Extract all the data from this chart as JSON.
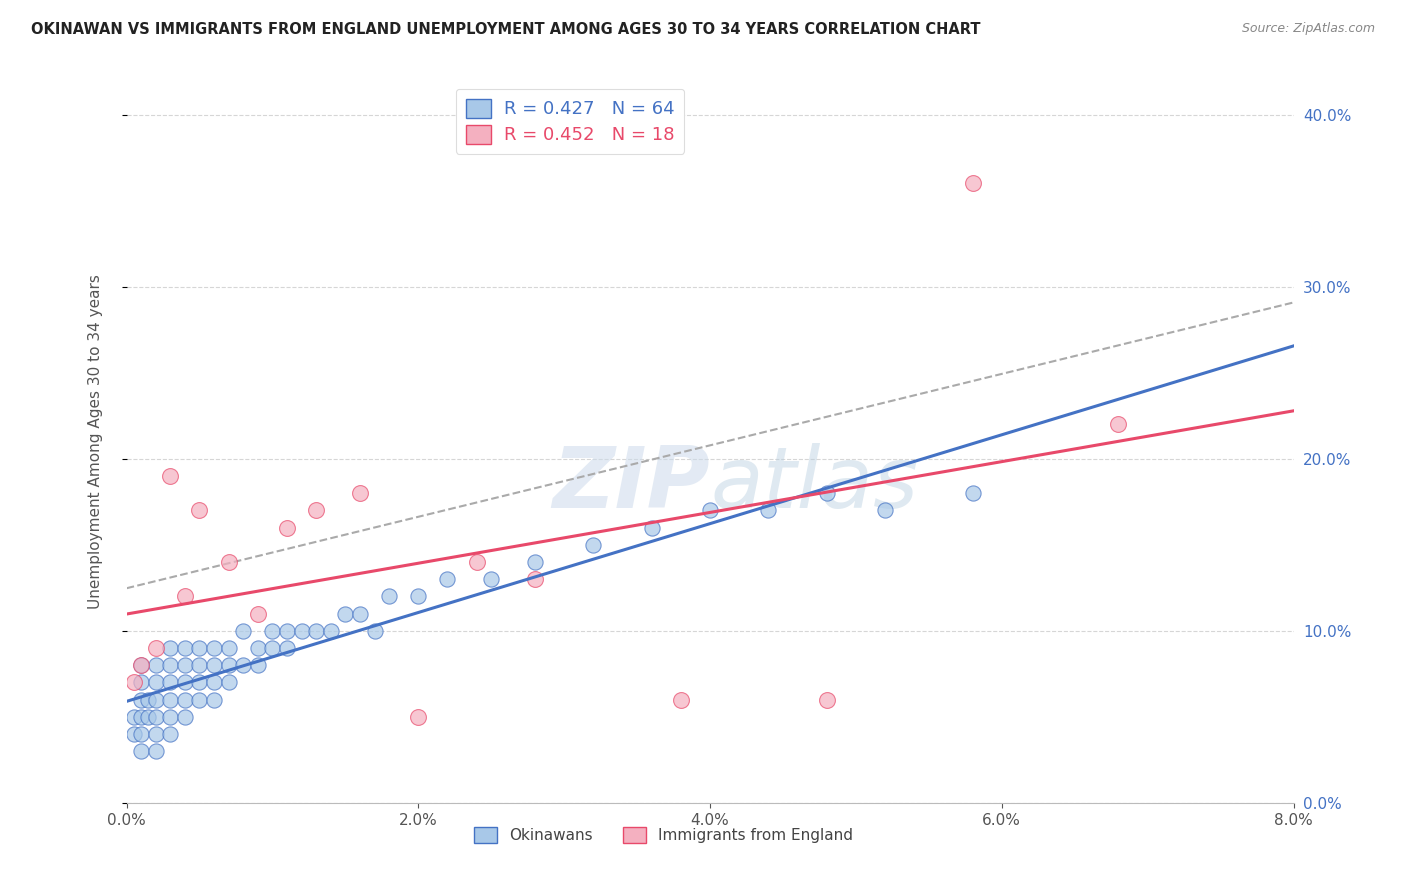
{
  "title": "OKINAWAN VS IMMIGRANTS FROM ENGLAND UNEMPLOYMENT AMONG AGES 30 TO 34 YEARS CORRELATION CHART",
  "source": "Source: ZipAtlas.com",
  "ylabel": "Unemployment Among Ages 30 to 34 years",
  "xlim": [
    0.0,
    0.08
  ],
  "ylim": [
    0.0,
    0.42
  ],
  "legend_okinawan": "Okinawans",
  "legend_england": "Immigrants from England",
  "R_okinawan": 0.427,
  "N_okinawan": 64,
  "R_england": 0.452,
  "N_england": 18,
  "color_okinawan_fill": "#a8c8e8",
  "color_okinawan_edge": "#4472c4",
  "color_england_fill": "#f4b0c0",
  "color_england_edge": "#e8496a",
  "color_line_okinawan": "#4472c4",
  "color_line_england": "#e8496a",
  "color_dash": "#aaaaaa",
  "watermark_color": "#ccdaeb",
  "background_color": "#ffffff",
  "grid_color": "#cccccc",
  "okinawan_x": [
    0.0005,
    0.0005,
    0.001,
    0.001,
    0.001,
    0.001,
    0.001,
    0.001,
    0.0015,
    0.0015,
    0.002,
    0.002,
    0.002,
    0.002,
    0.002,
    0.002,
    0.003,
    0.003,
    0.003,
    0.003,
    0.003,
    0.003,
    0.004,
    0.004,
    0.004,
    0.004,
    0.004,
    0.005,
    0.005,
    0.005,
    0.005,
    0.006,
    0.006,
    0.006,
    0.006,
    0.007,
    0.007,
    0.007,
    0.008,
    0.008,
    0.009,
    0.009,
    0.01,
    0.01,
    0.011,
    0.011,
    0.012,
    0.013,
    0.014,
    0.015,
    0.016,
    0.017,
    0.018,
    0.02,
    0.022,
    0.025,
    0.028,
    0.032,
    0.036,
    0.04,
    0.044,
    0.048,
    0.052,
    0.058
  ],
  "okinawan_y": [
    0.04,
    0.05,
    0.03,
    0.04,
    0.05,
    0.06,
    0.07,
    0.08,
    0.05,
    0.06,
    0.03,
    0.04,
    0.05,
    0.06,
    0.07,
    0.08,
    0.04,
    0.05,
    0.06,
    0.07,
    0.08,
    0.09,
    0.05,
    0.06,
    0.07,
    0.08,
    0.09,
    0.06,
    0.07,
    0.08,
    0.09,
    0.06,
    0.07,
    0.08,
    0.09,
    0.07,
    0.08,
    0.09,
    0.08,
    0.1,
    0.08,
    0.09,
    0.09,
    0.1,
    0.09,
    0.1,
    0.1,
    0.1,
    0.1,
    0.11,
    0.11,
    0.1,
    0.12,
    0.12,
    0.13,
    0.13,
    0.14,
    0.15,
    0.16,
    0.17,
    0.17,
    0.18,
    0.17,
    0.18
  ],
  "england_x": [
    0.0005,
    0.001,
    0.002,
    0.003,
    0.004,
    0.005,
    0.007,
    0.009,
    0.011,
    0.013,
    0.016,
    0.02,
    0.024,
    0.028,
    0.038,
    0.048,
    0.058,
    0.068
  ],
  "england_y": [
    0.07,
    0.08,
    0.09,
    0.19,
    0.12,
    0.17,
    0.14,
    0.11,
    0.16,
    0.17,
    0.18,
    0.05,
    0.14,
    0.13,
    0.06,
    0.06,
    0.36,
    0.22
  ]
}
